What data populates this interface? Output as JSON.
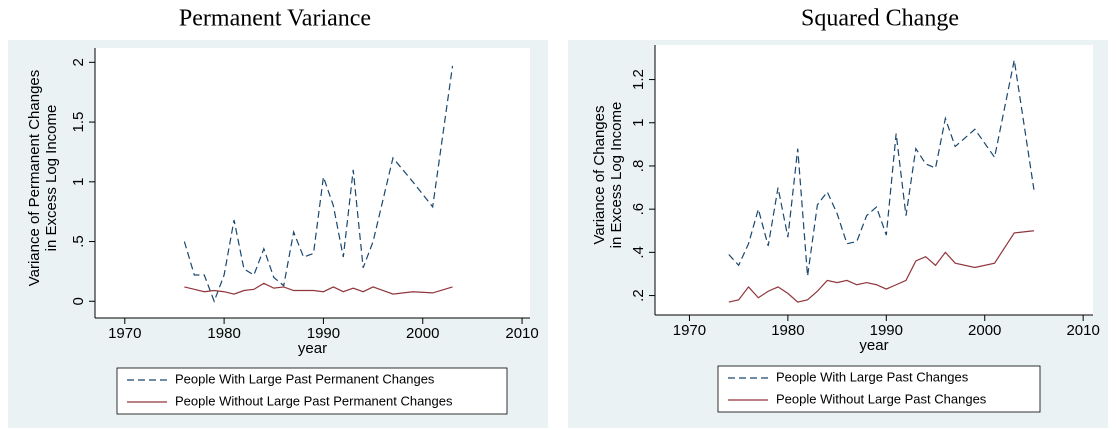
{
  "chart_data": [
    {
      "type": "line",
      "title": "Permanent Variance",
      "xlabel": "year",
      "ylabel": [
        "Variance of Permanent Changes",
        "in Excess Log Income"
      ],
      "x": [
        1976,
        1977,
        1978,
        1979,
        1980,
        1981,
        1982,
        1983,
        1984,
        1985,
        1986,
        1987,
        1988,
        1989,
        1990,
        1991,
        1992,
        1993,
        1994,
        1995,
        1997,
        1999,
        2001,
        2003
      ],
      "series": [
        {
          "name": "People With Large Past Permanent Changes",
          "color": "#1a476f",
          "dash": true,
          "values": [
            0.5,
            0.22,
            0.22,
            0.0,
            0.22,
            0.68,
            0.27,
            0.22,
            0.44,
            0.2,
            0.13,
            0.58,
            0.37,
            0.4,
            1.04,
            0.8,
            0.37,
            1.1,
            0.28,
            0.5,
            1.2,
            1.0,
            0.79,
            1.97
          ]
        },
        {
          "name": "People Without Large Past Permanent Changes",
          "color": "#90353b",
          "dash": false,
          "values": [
            0.12,
            0.1,
            0.08,
            0.09,
            0.08,
            0.06,
            0.09,
            0.1,
            0.15,
            0.11,
            0.12,
            0.09,
            0.09,
            0.09,
            0.08,
            0.12,
            0.08,
            0.11,
            0.08,
            0.12,
            0.06,
            0.08,
            0.07,
            0.12
          ]
        }
      ],
      "xlim": [
        1967,
        2010.8
      ],
      "xticks": [
        1970,
        1980,
        1990,
        2000,
        2010
      ],
      "ylim": [
        -0.14,
        2.12
      ],
      "yticks": [
        0,
        {
          "value": 0.5,
          "label": ".5"
        },
        1,
        1.5,
        2
      ],
      "grid": false
    },
    {
      "type": "line",
      "title": "Squared Change",
      "xlabel": "year",
      "ylabel": [
        "Variance of Changes",
        "in Excess Log Income"
      ],
      "x": [
        1974,
        1975,
        1976,
        1977,
        1978,
        1979,
        1980,
        1981,
        1982,
        1983,
        1984,
        1985,
        1986,
        1987,
        1988,
        1989,
        1990,
        1991,
        1992,
        1993,
        1994,
        1995,
        1996,
        1997,
        1999,
        2001,
        2003,
        2005
      ],
      "series": [
        {
          "name": "People With Large Past Changes",
          "color": "#1a476f",
          "dash": true,
          "values": [
            0.39,
            0.34,
            0.44,
            0.6,
            0.43,
            0.7,
            0.47,
            0.88,
            0.29,
            0.62,
            0.68,
            0.58,
            0.44,
            0.45,
            0.57,
            0.61,
            0.48,
            0.95,
            0.57,
            0.88,
            0.81,
            0.79,
            1.02,
            0.89,
            0.97,
            0.84,
            1.29,
            0.69
          ]
        },
        {
          "name": "People Without Large Past Changes",
          "color": "#90353b",
          "dash": false,
          "values": [
            0.17,
            0.18,
            0.24,
            0.19,
            0.22,
            0.24,
            0.21,
            0.17,
            0.18,
            0.22,
            0.27,
            0.26,
            0.27,
            0.25,
            0.26,
            0.25,
            0.23,
            0.25,
            0.27,
            0.36,
            0.38,
            0.34,
            0.4,
            0.35,
            0.33,
            0.35,
            0.49,
            0.5
          ]
        }
      ],
      "xlim": [
        1966.5,
        2011
      ],
      "xticks": [
        1970,
        1980,
        1990,
        2000,
        2010
      ],
      "ylim": [
        0.11,
        1.36
      ],
      "yticks": [
        {
          "value": 0.2,
          "label": ".2"
        },
        {
          "value": 0.4,
          "label": ".4"
        },
        {
          "value": 0.6,
          "label": ".6"
        },
        {
          "value": 0.8,
          "label": ".8"
        },
        1,
        1.2
      ],
      "grid": false
    }
  ]
}
